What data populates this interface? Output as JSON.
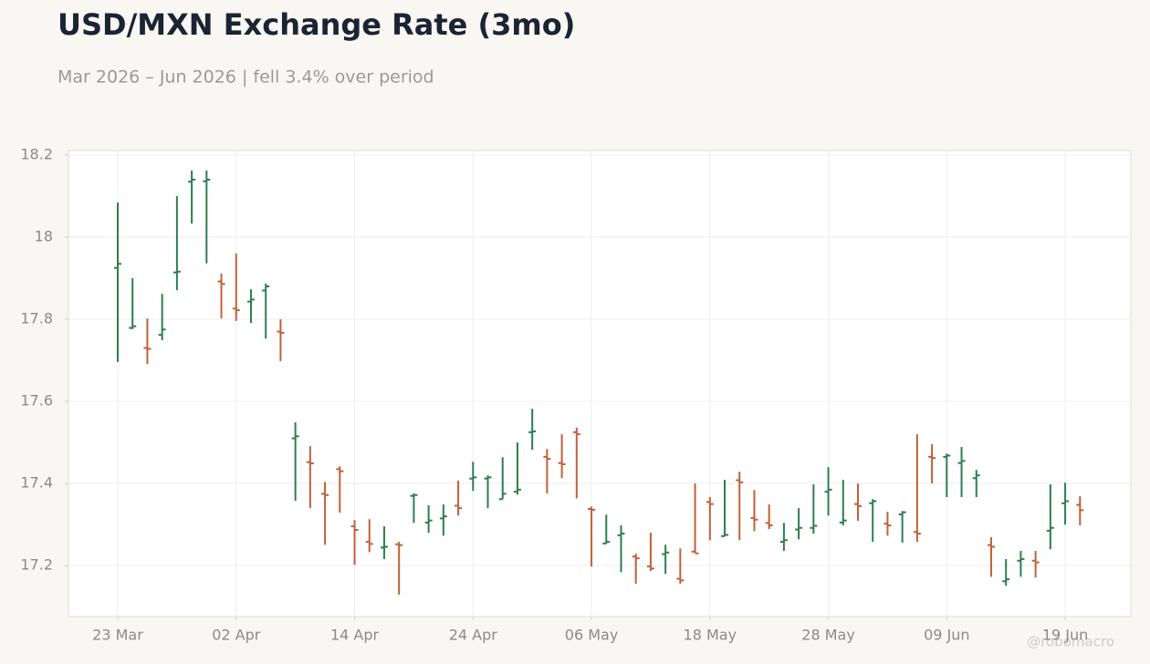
{
  "chart_data": {
    "type": "ohlc",
    "title": "USD/MXN Exchange Rate (3mo)",
    "subtitle": "Mar 2026 – Jun 2026 | fell 3.4% over period",
    "watermark": "@robomacro",
    "categories": [
      "23 Mar",
      null,
      null,
      null,
      null,
      null,
      null,
      null,
      "02 Apr",
      null,
      null,
      null,
      null,
      null,
      null,
      null,
      "14 Apr",
      null,
      null,
      null,
      null,
      null,
      null,
      null,
      "24 Apr",
      null,
      null,
      null,
      null,
      null,
      null,
      null,
      "06 May",
      null,
      null,
      null,
      null,
      null,
      null,
      null,
      "18 May",
      null,
      null,
      null,
      null,
      null,
      null,
      null,
      "28 May",
      null,
      null,
      null,
      null,
      null,
      null,
      null,
      "09 Jun",
      null,
      null,
      null,
      null,
      null,
      null,
      null,
      "19 Jun",
      null
    ],
    "open": [
      17.925,
      17.779,
      17.73,
      17.762,
      17.914,
      18.135,
      18.136,
      17.892,
      17.826,
      17.843,
      17.87,
      17.77,
      17.51,
      17.452,
      17.375,
      17.435,
      17.296,
      17.258,
      17.244,
      17.252,
      17.37,
      17.305,
      17.315,
      17.346,
      17.412,
      17.412,
      17.362,
      17.38,
      17.525,
      17.465,
      17.45,
      17.525,
      17.338,
      17.254,
      17.274,
      17.222,
      17.198,
      17.228,
      17.168,
      17.234,
      17.355,
      17.272,
      17.408,
      17.316,
      17.304,
      17.258,
      17.288,
      17.292,
      17.38,
      17.305,
      17.35,
      17.352,
      17.302,
      17.325,
      17.282,
      17.465,
      17.465,
      17.45,
      17.413,
      17.25,
      17.162,
      17.212,
      17.212,
      17.285,
      17.352,
      17.348
    ],
    "high": [
      18.084,
      17.9,
      17.802,
      17.862,
      18.1,
      18.162,
      18.162,
      17.911,
      17.96,
      17.873,
      17.887,
      17.8,
      17.549,
      17.491,
      17.404,
      17.442,
      17.311,
      17.313,
      17.296,
      17.258,
      17.376,
      17.347,
      17.349,
      17.407,
      17.453,
      17.42,
      17.464,
      17.5,
      17.582,
      17.484,
      17.52,
      17.536,
      17.344,
      17.324,
      17.298,
      17.229,
      17.28,
      17.251,
      17.242,
      17.4,
      17.367,
      17.409,
      17.429,
      17.384,
      17.349,
      17.304,
      17.34,
      17.398,
      17.44,
      17.409,
      17.4,
      17.362,
      17.331,
      17.333,
      17.52,
      17.496,
      17.473,
      17.489,
      17.433,
      17.269,
      17.216,
      17.236,
      17.236,
      17.398,
      17.402,
      17.369
    ],
    "low": [
      17.696,
      17.776,
      17.691,
      17.749,
      17.871,
      18.033,
      17.936,
      17.802,
      17.796,
      17.791,
      17.753,
      17.698,
      17.358,
      17.34,
      17.251,
      17.329,
      17.202,
      17.233,
      17.216,
      17.129,
      17.304,
      17.28,
      17.273,
      17.322,
      17.382,
      17.34,
      17.362,
      17.373,
      17.482,
      17.376,
      17.413,
      17.364,
      17.198,
      17.253,
      17.184,
      17.156,
      17.187,
      17.18,
      17.156,
      17.231,
      17.262,
      17.271,
      17.262,
      17.284,
      17.289,
      17.236,
      17.264,
      17.278,
      17.322,
      17.298,
      17.309,
      17.258,
      17.273,
      17.256,
      17.258,
      17.4,
      17.367,
      17.367,
      17.367,
      17.173,
      17.151,
      17.173,
      17.171,
      17.24,
      17.3,
      17.298
    ],
    "close": [
      17.935,
      17.783,
      17.728,
      17.775,
      17.916,
      18.14,
      18.14,
      17.886,
      17.822,
      17.848,
      17.88,
      17.767,
      17.515,
      17.449,
      17.372,
      17.43,
      17.287,
      17.253,
      17.246,
      17.25,
      17.372,
      17.31,
      17.32,
      17.34,
      17.415,
      17.415,
      17.375,
      17.385,
      17.527,
      17.46,
      17.447,
      17.52,
      17.336,
      17.258,
      17.278,
      17.218,
      17.193,
      17.232,
      17.164,
      17.23,
      17.35,
      17.275,
      17.403,
      17.312,
      17.298,
      17.262,
      17.292,
      17.297,
      17.385,
      17.31,
      17.345,
      17.357,
      17.298,
      17.33,
      17.278,
      17.462,
      17.468,
      17.455,
      17.42,
      17.246,
      17.167,
      17.216,
      17.208,
      17.292,
      17.357,
      17.335
    ],
    "up_color": "#2e7d4f",
    "down_color": "#c0603a",
    "ylim": [
      17.076,
      18.211
    ],
    "yticks": [
      17.2,
      17.4,
      17.6,
      17.8,
      18,
      18.2
    ],
    "grid": true
  }
}
